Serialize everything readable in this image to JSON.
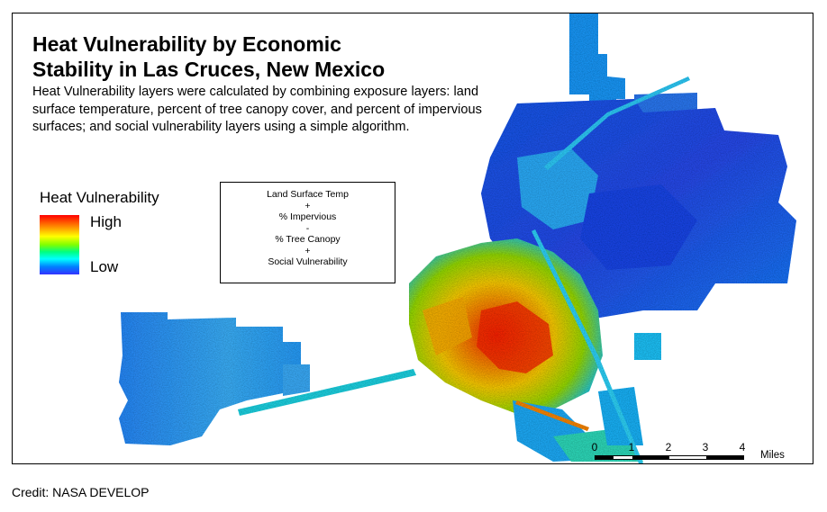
{
  "title": {
    "line1": "Heat Vulnerability by Economic",
    "line2": "Stability in Las Cruces, New Mexico"
  },
  "description": "Heat Vulnerability layers were calculated by combining exposure layers: land surface temperature, percent of tree canopy cover, and percent of impervious surfaces; and social vulnerability layers using a simple algorithm.",
  "legend": {
    "title": "Heat Vulnerability",
    "high": "High",
    "low": "Low",
    "colors": [
      "#ff0000",
      "#ff8000",
      "#ffff00",
      "#80ff00",
      "#00ff80",
      "#00ffff",
      "#0080ff",
      "#3333ff"
    ]
  },
  "formula": {
    "lines": [
      "Land Surface Temp",
      "+",
      "% Impervious",
      "-",
      "% Tree Canopy",
      "+",
      "Social Vulnerability"
    ]
  },
  "scale_bar": {
    "ticks": [
      "0",
      "1",
      "2",
      "3",
      "4"
    ],
    "unit": "Miles"
  },
  "credit": "Credit: NASA DEVELOP"
}
